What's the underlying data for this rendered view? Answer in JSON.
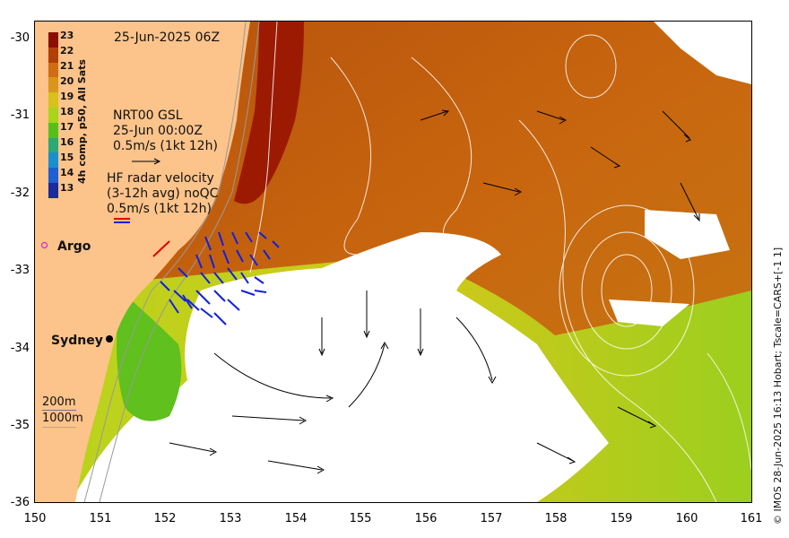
{
  "map": {
    "date_title": "25-Jun-2025 06Z",
    "colorbar_label": "4h comp, p50, All Sats",
    "colorbar_ticks": [
      "23",
      "22",
      "21",
      "20",
      "19",
      "18",
      "17",
      "16",
      "15",
      "14",
      "13"
    ],
    "colorbar_colors": [
      "#8a0f00",
      "#b04008",
      "#cf6c14",
      "#d9951c",
      "#d6c21a",
      "#a9d41a",
      "#55c01a",
      "#2aa878",
      "#1a8fcf",
      "#1f5fd4",
      "#1a2a9a"
    ],
    "altimetry_title": "NRT00 GSL",
    "altimetry_time": "25-Jun 00:00Z",
    "altimetry_scale": "0.5m/s (1kt 12h)",
    "hf_title": "HF radar velocity",
    "hf_avg": "(3-12h avg) noQC",
    "hf_scale": "0.5m/s (1kt 12h)",
    "argo_label": "Argo",
    "city_label": "Sydney",
    "depth_200": "200m",
    "depth_1000": "1000m",
    "credit": "© IMOS 28-Jun-2025 16:13 Hobart; Tscale=CARS+[-1 1]",
    "lat_ticks": [
      "-30",
      "-31",
      "-32",
      "-33",
      "-34",
      "-35",
      "-36"
    ],
    "lon_ticks": [
      "150",
      "151",
      "152",
      "153",
      "154",
      "155",
      "156",
      "157",
      "158",
      "159",
      "160",
      "161"
    ],
    "land_color": "#fcc38a",
    "missing_color": "#ffffff",
    "hf_vector_color": "#1020e0",
    "argo_color": "#e000e0"
  }
}
